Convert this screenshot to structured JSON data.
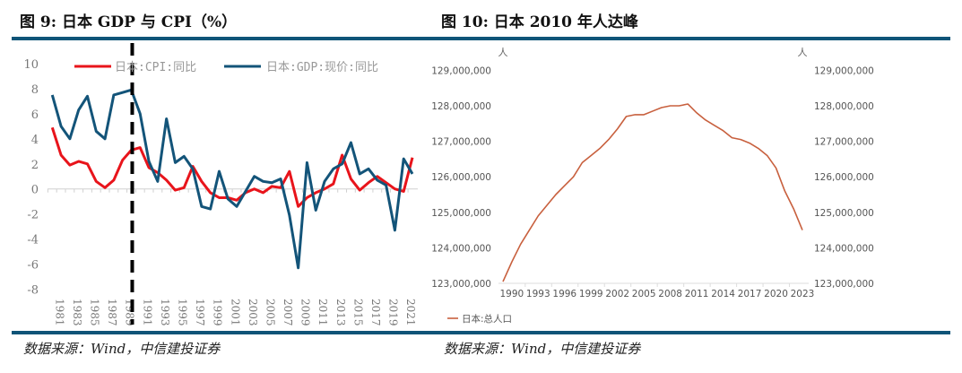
{
  "figures": [
    {
      "title": "图 9:  日本 GDP 与 CPI（%）",
      "source": "数据来源：Wind，中信建投证券"
    },
    {
      "title": "图 10:  日本 2010 年人达峰",
      "source": "数据来源：Wind，中信建投证券"
    }
  ],
  "colors": {
    "rule": "#0f5478",
    "cpi": "#e8141b",
    "gdp": "#135479",
    "population": "#c8603e",
    "marker": "#000000"
  },
  "chart_data": [
    {
      "type": "line",
      "x": [
        1981,
        1982,
        1983,
        1984,
        1985,
        1986,
        1987,
        1988,
        1989,
        1990,
        1991,
        1992,
        1993,
        1994,
        1995,
        1996,
        1997,
        1998,
        1999,
        2000,
        2001,
        2002,
        2003,
        2004,
        2005,
        2006,
        2007,
        2008,
        2009,
        2010,
        2011,
        2012,
        2013,
        2014,
        2015,
        2016,
        2017,
        2018,
        2019,
        2020,
        2021,
        2022
      ],
      "xticks": [
        "1981",
        "1983",
        "1985",
        "1987",
        "1989",
        "1991",
        "1993",
        "1995",
        "1997",
        "1999",
        "2001",
        "2003",
        "2005",
        "2007",
        "2009",
        "2011",
        "2013",
        "2015",
        "2017",
        "2019",
        "2021"
      ],
      "yticks": [
        "10",
        "8",
        "6",
        "4",
        "2",
        "0",
        "-2",
        "-4",
        "-6",
        "-8"
      ],
      "ylim": [
        -8,
        10
      ],
      "legend": "top",
      "vertical_marker": {
        "x": 1990,
        "style": "dashed"
      },
      "series": [
        {
          "name": "日本:CPI:同比",
          "values": [
            4.9,
            2.7,
            1.9,
            2.2,
            2.0,
            0.6,
            0.1,
            0.7,
            2.3,
            3.1,
            3.3,
            1.7,
            1.3,
            0.7,
            -0.1,
            0.1,
            1.8,
            0.6,
            -0.3,
            -0.7,
            -0.7,
            -0.9,
            -0.3,
            0.0,
            -0.3,
            0.2,
            0.1,
            1.4,
            -1.4,
            -0.7,
            -0.3,
            0.0,
            0.4,
            2.7,
            0.8,
            -0.1,
            0.5,
            1.0,
            0.5,
            0.0,
            -0.2,
            2.5
          ]
        },
        {
          "name": "日本:GDP:现价:同比",
          "values": [
            7.5,
            5.0,
            4.0,
            6.3,
            7.4,
            4.6,
            4.0,
            7.5,
            7.7,
            7.9,
            6.0,
            2.2,
            0.6,
            5.6,
            2.1,
            2.6,
            1.6,
            -1.4,
            -1.6,
            1.4,
            -0.8,
            -1.4,
            -0.2,
            1.0,
            0.6,
            0.5,
            0.8,
            -2.1,
            -6.3,
            2.1,
            -1.7,
            0.6,
            1.6,
            2.0,
            3.7,
            1.2,
            1.6,
            0.7,
            0.3,
            -3.3,
            2.4,
            1.2
          ]
        }
      ]
    },
    {
      "type": "line",
      "x": [
        1989,
        1990,
        1991,
        1992,
        1993,
        1994,
        1995,
        1996,
        1997,
        1998,
        1999,
        2000,
        2001,
        2002,
        2003,
        2004,
        2005,
        2006,
        2007,
        2008,
        2009,
        2010,
        2011,
        2012,
        2013,
        2014,
        2015,
        2016,
        2017,
        2018,
        2019,
        2020,
        2021,
        2022,
        2023
      ],
      "xticks": [
        "1990",
        "1993",
        "1996",
        "1999",
        "2002",
        "2005",
        "2008",
        "2011",
        "2014",
        "2017",
        "2020",
        "2023"
      ],
      "yticks": [
        "129,000,000",
        "128,000,000",
        "127,000,000",
        "126,000,000",
        "125,000,000",
        "124,000,000",
        "123,000,000"
      ],
      "ylim": [
        123000000,
        129000000
      ],
      "yunit_left": "人",
      "yunit_right": "人",
      "legend": "bottom-left",
      "series": [
        {
          "name": "日本:总人口",
          "values": [
            123050000,
            123600000,
            124100000,
            124500000,
            124900000,
            125200000,
            125500000,
            125750000,
            126000000,
            126400000,
            126600000,
            126800000,
            127050000,
            127350000,
            127700000,
            127750000,
            127750000,
            127850000,
            127950000,
            128000000,
            128000000,
            128050000,
            127800000,
            127600000,
            127450000,
            127300000,
            127100000,
            127050000,
            126950000,
            126800000,
            126600000,
            126250000,
            125600000,
            125100000,
            124500000
          ]
        }
      ]
    }
  ]
}
